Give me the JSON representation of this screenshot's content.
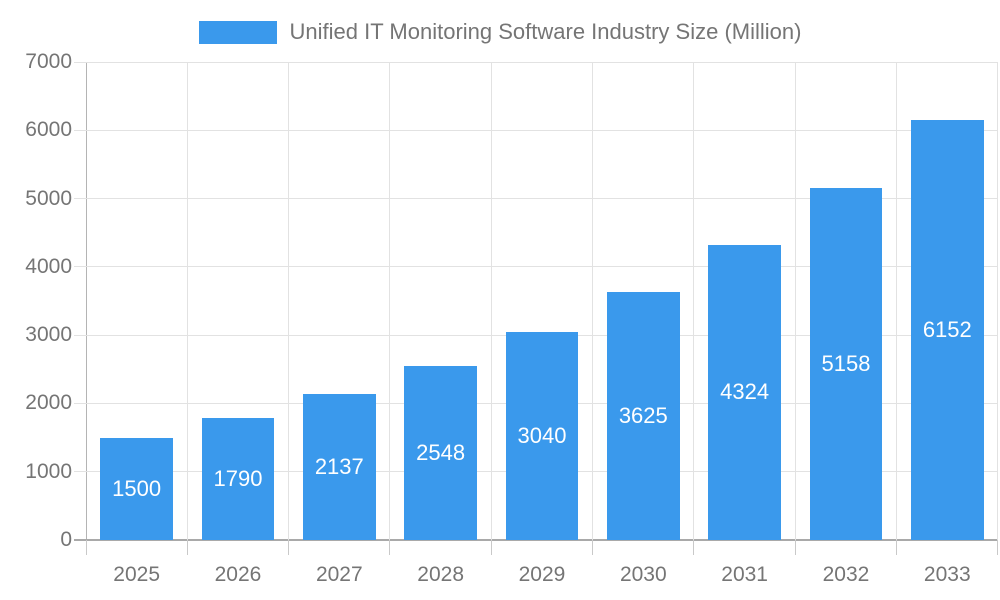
{
  "chart_data": {
    "type": "bar",
    "title": "Unified IT Monitoring Software Industry Size (Million)",
    "legend": {
      "position": "top",
      "entries": [
        {
          "label": "Unified IT Monitoring Software Industry Size (Million)",
          "swatch_color": "#3a99ec"
        }
      ]
    },
    "categories": [
      "2025",
      "2026",
      "2027",
      "2028",
      "2029",
      "2030",
      "2031",
      "2032",
      "2033"
    ],
    "values": [
      1500,
      1790,
      2137,
      2548,
      3040,
      3625,
      4324,
      5158,
      6152
    ],
    "bar_labels": [
      "1500",
      "1790",
      "2137",
      "2548",
      "3040",
      "3625",
      "4324",
      "5158",
      "6152"
    ],
    "xlabel": "",
    "ylabel": "",
    "ylim": [
      0,
      7000
    ],
    "yticks": [
      0,
      1000,
      2000,
      3000,
      4000,
      5000,
      6000,
      7000
    ],
    "grid": true,
    "colors": {
      "bar": "#3a99ec",
      "bar_value_text": "#ffffff",
      "tick_text": "#757575",
      "legend_text": "#757575",
      "grid_line": "#e2e2e2",
      "axis_line": "#a9a9a9",
      "background": "#ffffff"
    }
  }
}
